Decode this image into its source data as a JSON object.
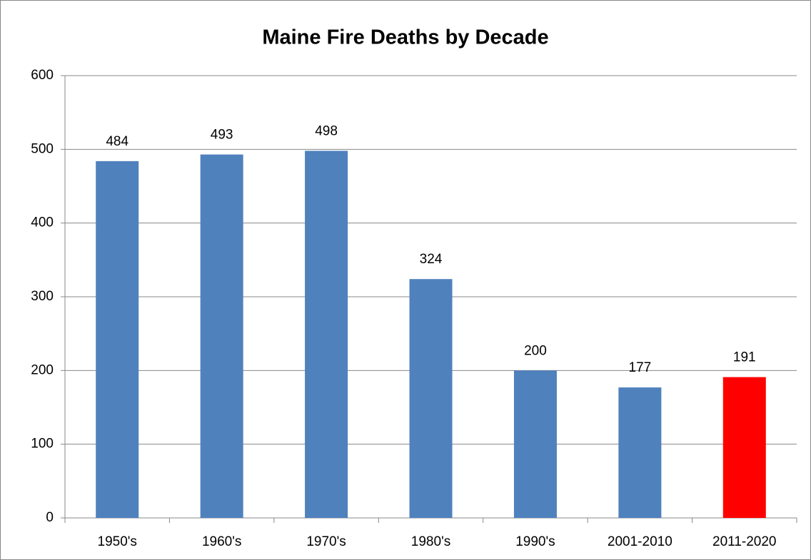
{
  "chart_data": {
    "type": "bar",
    "title": "Maine Fire Deaths by Decade",
    "categories": [
      "1950's",
      "1960's",
      "1970's",
      "1980's",
      "1990's",
      "2001-2010",
      "2011-2020"
    ],
    "values": [
      484,
      493,
      498,
      324,
      200,
      177,
      191
    ],
    "colors": [
      "#4f81bd",
      "#4f81bd",
      "#4f81bd",
      "#4f81bd",
      "#4f81bd",
      "#4f81bd",
      "#ff0000"
    ],
    "ylim": [
      0,
      600
    ],
    "yticks": [
      0,
      100,
      200,
      300,
      400,
      500,
      600
    ],
    "grid": true
  }
}
